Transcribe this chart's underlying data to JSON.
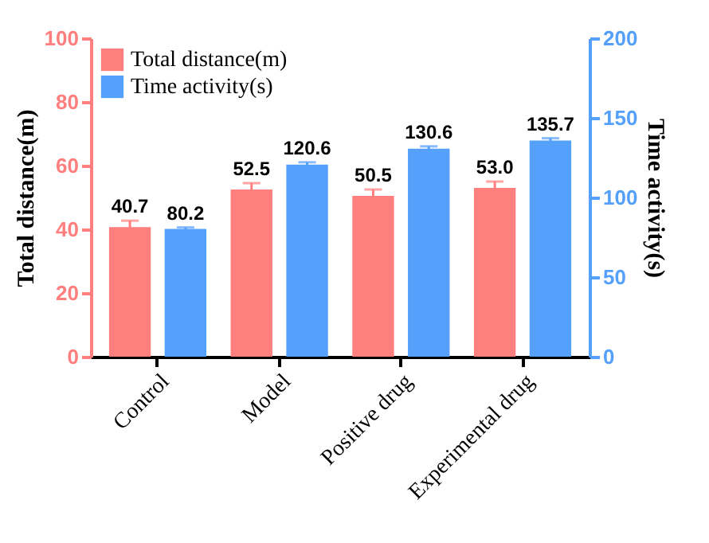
{
  "chart_data": {
    "type": "bar",
    "ylabel": "Total distance(m)",
    "y2label": "Time activity(s)",
    "categories": [
      "Control",
      "Model",
      "Positive drug",
      "Experimental drug"
    ],
    "series": [
      {
        "name": "Total distance(m)",
        "color": "#ff7f7f",
        "values": [
          40.7,
          52.5,
          50.5,
          53.0
        ],
        "value_labels": [
          "40.7",
          "52.5",
          "50.5",
          "53.0"
        ],
        "errors": [
          2,
          2,
          2,
          2
        ],
        "axis": "y"
      },
      {
        "name": "Time activity(s)",
        "color": "#55a0fb",
        "values": [
          80.2,
          120.6,
          130.6,
          135.7
        ],
        "value_labels": [
          "80.2",
          "120.6",
          "130.6",
          "135.7"
        ],
        "errors": [
          1,
          1.5,
          1.5,
          1.5
        ],
        "axis": "y2"
      }
    ],
    "ylim": [
      0,
      100
    ],
    "yticks": [
      0,
      20,
      40,
      60,
      80,
      100
    ],
    "y2lim": [
      0,
      200
    ],
    "y2ticks": [
      0,
      50,
      100,
      150,
      200
    ],
    "grid": false,
    "legend": "top left"
  }
}
